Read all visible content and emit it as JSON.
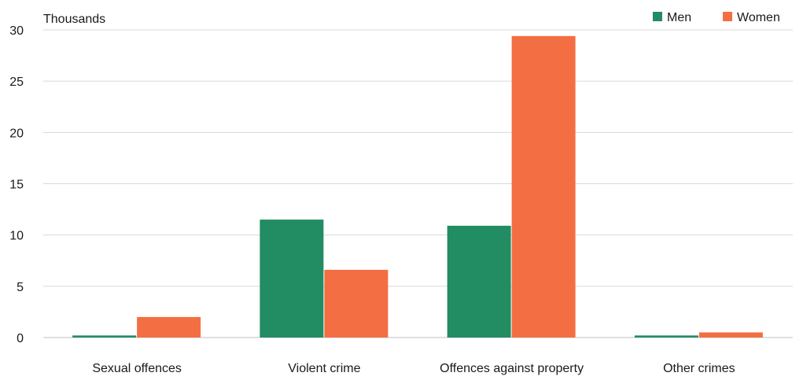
{
  "chart_data": {
    "type": "bar",
    "unit_label": "Thousands",
    "categories": [
      "Sexual offences",
      "Violent crime",
      "Offences against  property",
      "Other crimes"
    ],
    "series": [
      {
        "name": "Men",
        "color": "#228c63",
        "values": [
          0.2,
          11.5,
          10.9,
          0.2
        ]
      },
      {
        "name": "Women",
        "color": "#f36f43",
        "values": [
          2.0,
          6.6,
          29.4,
          0.5
        ]
      }
    ],
    "ylim": [
      0,
      30
    ],
    "yticks": [
      0,
      5,
      10,
      15,
      20,
      25,
      30
    ],
    "grid": true,
    "legend": "top-right"
  }
}
